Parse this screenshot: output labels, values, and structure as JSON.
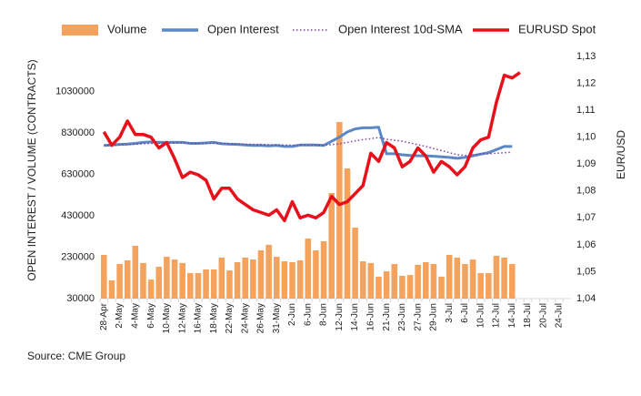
{
  "chart_data": {
    "type": "bar-line-combo",
    "y_label": "OPEN INTEREST / VOLUME (CONTRACTS)",
    "y2_label": "EUR/USD",
    "source": "Source: CME Group",
    "categories": [
      "28-Apr",
      null,
      "2-May",
      null,
      "4-May",
      null,
      "6-May",
      null,
      "10-May",
      null,
      "12-May",
      null,
      "16-May",
      null,
      "18-May",
      null,
      "22-May",
      null,
      "24-May",
      null,
      "26-May",
      null,
      "31-May",
      null,
      "2-Jun",
      null,
      "6-Jun",
      null,
      "8-Jun",
      null,
      "12-Jun",
      null,
      "14-Jun",
      null,
      "16-Jun",
      null,
      "21-Jun",
      null,
      "23-Jun",
      null,
      "27-Jun",
      null,
      "29-Jun",
      null,
      "3-Jul",
      null,
      "6-Jul",
      null,
      "10-Jul",
      null,
      "12-Jul",
      null,
      "14-Jul",
      null,
      "18-Jul",
      null,
      "20-Jul",
      null,
      "24-Jul",
      null
    ],
    "ylim": [
      30000,
      1200000
    ],
    "yticks": [
      30000,
      230000,
      430000,
      630000,
      830000,
      1030000
    ],
    "y2lim": [
      1.04,
      1.13
    ],
    "y2ticks": [
      {
        "value": 1.04,
        "label": "1,04"
      },
      {
        "value": 1.05,
        "label": "1,05"
      },
      {
        "value": 1.06,
        "label": "1,06"
      },
      {
        "value": 1.07,
        "label": "1,07"
      },
      {
        "value": 1.08,
        "label": "1,08"
      },
      {
        "value": 1.09,
        "label": "1,09"
      },
      {
        "value": 1.1,
        "label": "1,10"
      },
      {
        "value": 1.11,
        "label": "1,11"
      },
      {
        "value": 1.12,
        "label": "1,12"
      },
      {
        "value": 1.13,
        "label": "1,13"
      }
    ],
    "series": [
      {
        "name": "Volume",
        "kind": "bar",
        "color": "#f4a25c",
        "values": [
          241000,
          118000,
          197000,
          215000,
          285000,
          202000,
          122000,
          184000,
          232000,
          219000,
          202000,
          153000,
          153000,
          171000,
          171000,
          228000,
          166000,
          206000,
          228000,
          219000,
          263000,
          290000,
          232000,
          210000,
          206000,
          215000,
          320000,
          263000,
          307000,
          540000,
          883000,
          659000,
          373000,
          210000,
          202000,
          136000,
          162000,
          197000,
          140000,
          144000,
          193000,
          206000,
          197000,
          136000,
          241000,
          228000,
          197000,
          219000,
          153000,
          153000,
          237000,
          228000,
          197000,
          null,
          null,
          null,
          null,
          null,
          null,
          null
        ]
      },
      {
        "name": "Open Interest",
        "kind": "line",
        "color": "#5b87c5",
        "values": [
          770000,
          772000,
          775000,
          777000,
          780000,
          785000,
          787000,
          785000,
          785000,
          785000,
          785000,
          780000,
          780000,
          782000,
          785000,
          778000,
          776000,
          775000,
          772000,
          770000,
          770000,
          768000,
          770000,
          765000,
          765000,
          772000,
          772000,
          772000,
          770000,
          790000,
          810000,
          835000,
          850000,
          855000,
          855000,
          858000,
          730000,
          730000,
          725000,
          722000,
          720000,
          720000,
          718000,
          715000,
          712000,
          708000,
          712000,
          720000,
          728000,
          735000,
          750000,
          765000,
          765000,
          null,
          null,
          null,
          null,
          null,
          null,
          null
        ]
      },
      {
        "name": "Open Interest 10d-SMA",
        "kind": "dotted",
        "color": "#7b3fa6",
        "values": [
          770000,
          770000,
          772000,
          774000,
          776000,
          778000,
          780000,
          781000,
          782000,
          782000,
          782000,
          781000,
          780000,
          780000,
          780000,
          779000,
          778000,
          777000,
          776000,
          775000,
          775000,
          774000,
          773000,
          772000,
          771000,
          771000,
          771000,
          771000,
          771000,
          774000,
          778000,
          785000,
          792000,
          798000,
          803000,
          808000,
          800000,
          795000,
          790000,
          782000,
          774000,
          765000,
          755000,
          745000,
          735000,
          725000,
          722000,
          725000,
          728000,
          730000,
          732000,
          735000,
          737000,
          null,
          null,
          null,
          null,
          null,
          null,
          null
        ]
      },
      {
        "name": "EURUSD Spot",
        "kind": "line",
        "axis": "y2",
        "color": "#e8101a",
        "values": [
          1.102,
          1.097,
          1.1,
          1.106,
          1.101,
          1.101,
          1.1,
          1.096,
          1.098,
          1.092,
          1.085,
          1.087,
          1.086,
          1.084,
          1.077,
          1.081,
          1.081,
          1.077,
          1.075,
          1.073,
          1.072,
          1.071,
          1.073,
          1.069,
          1.076,
          1.07,
          1.071,
          1.07,
          1.072,
          1.078,
          1.075,
          1.076,
          1.079,
          1.082,
          1.094,
          1.091,
          1.098,
          1.096,
          1.089,
          1.091,
          1.096,
          1.093,
          1.087,
          1.091,
          1.089,
          1.086,
          1.089,
          1.096,
          1.099,
          1.1,
          1.113,
          1.123,
          1.122,
          1.124,
          null,
          null,
          null,
          null,
          null,
          null
        ]
      }
    ]
  }
}
